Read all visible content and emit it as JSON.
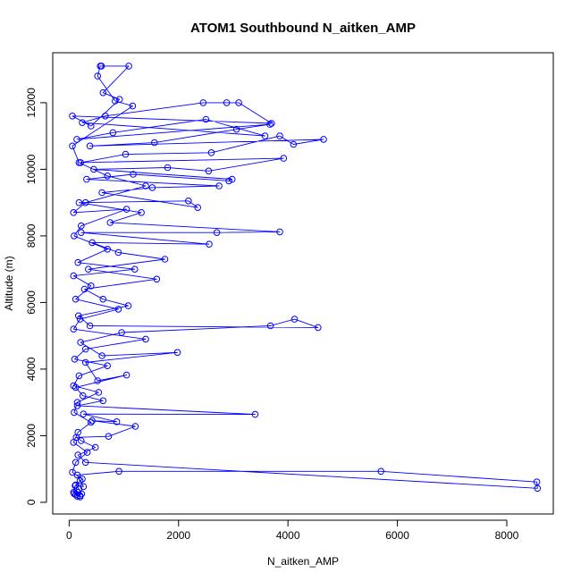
{
  "chart_data": {
    "type": "scatter",
    "title": "ATOM1 Southbound N_aitken_AMP",
    "xlabel": "N_aitken_AMP",
    "ylabel": "Altitude (m)",
    "xlim": [
      -300,
      8850
    ],
    "ylim": [
      -350,
      13500
    ],
    "xticks": [
      0,
      2000,
      4000,
      6000,
      8000
    ],
    "yticks": [
      0,
      2000,
      4000,
      6000,
      8000,
      10000,
      12000
    ],
    "grid": false,
    "legend": "none",
    "color": "#0000ff",
    "series": [
      {
        "points": [
          [
            150,
            180
          ],
          [
            120,
            230
          ],
          [
            200,
            200
          ],
          [
            90,
            260
          ],
          [
            160,
            300
          ],
          [
            230,
            250
          ],
          [
            180,
            400
          ],
          [
            120,
            520
          ],
          [
            260,
            470
          ],
          [
            200,
            650
          ],
          [
            150,
            820
          ],
          [
            910,
            930
          ],
          [
            5700,
            930
          ],
          [
            8550,
            610
          ],
          [
            8560,
            420
          ],
          [
            300,
            1200
          ],
          [
            160,
            1420
          ],
          [
            480,
            1650
          ],
          [
            220,
            1850
          ],
          [
            130,
            1950
          ],
          [
            720,
            1980
          ],
          [
            1210,
            2280
          ],
          [
            420,
            2450
          ],
          [
            870,
            2420
          ],
          [
            260,
            2650
          ],
          [
            3400,
            2640
          ],
          [
            150,
            2900
          ],
          [
            620,
            3050
          ],
          [
            250,
            3200
          ],
          [
            120,
            3450
          ],
          [
            1050,
            3820
          ],
          [
            520,
            3650
          ],
          [
            300,
            4200
          ],
          [
            1980,
            4500
          ],
          [
            600,
            4400
          ],
          [
            210,
            4800
          ],
          [
            960,
            5100
          ],
          [
            3680,
            5300
          ],
          [
            4120,
            5500
          ],
          [
            4550,
            5250
          ],
          [
            380,
            5300
          ],
          [
            170,
            5600
          ],
          [
            1080,
            5900
          ],
          [
            620,
            6100
          ],
          [
            280,
            6400
          ],
          [
            1600,
            6700
          ],
          [
            350,
            7000
          ],
          [
            1750,
            7300
          ],
          [
            900,
            7500
          ],
          [
            420,
            7800
          ],
          [
            2560,
            7750
          ],
          [
            220,
            8100
          ],
          [
            2700,
            8100
          ],
          [
            3850,
            8120
          ],
          [
            750,
            8400
          ],
          [
            1320,
            8700
          ],
          [
            180,
            9000
          ],
          [
            2180,
            9050
          ],
          [
            2350,
            8850
          ],
          [
            600,
            9300
          ],
          [
            1520,
            9450
          ],
          [
            2740,
            9500
          ],
          [
            320,
            9700
          ],
          [
            1170,
            9850
          ],
          [
            2920,
            9650
          ],
          [
            2980,
            9700
          ],
          [
            450,
            10000
          ],
          [
            1800,
            10050
          ],
          [
            2550,
            9950
          ],
          [
            3920,
            10330
          ],
          [
            210,
            10200
          ],
          [
            1030,
            10450
          ],
          [
            2600,
            10500
          ],
          [
            3850,
            11000
          ],
          [
            4100,
            10750
          ],
          [
            4650,
            10900
          ],
          [
            380,
            10700
          ],
          [
            1560,
            10800
          ],
          [
            3060,
            11200
          ],
          [
            3670,
            11350
          ],
          [
            140,
            10900
          ],
          [
            800,
            11100
          ],
          [
            2500,
            11500
          ],
          [
            3580,
            11000
          ],
          [
            240,
            11400
          ],
          [
            660,
            11600
          ],
          [
            2450,
            12000
          ],
          [
            2880,
            12000
          ],
          [
            3100,
            12000
          ],
          [
            3700,
            11380
          ],
          [
            60,
            11600
          ],
          [
            400,
            11300
          ],
          [
            920,
            12100
          ],
          [
            620,
            12300
          ],
          [
            1090,
            13100
          ],
          [
            590,
            13100
          ],
          [
            570,
            13100
          ],
          [
            520,
            12800
          ],
          [
            840,
            12050
          ],
          [
            1160,
            11900
          ],
          [
            60,
            10700
          ],
          [
            180,
            10200
          ],
          [
            700,
            9800
          ],
          [
            1400,
            9500
          ],
          [
            300,
            9000
          ],
          [
            80,
            8700
          ],
          [
            1050,
            8800
          ],
          [
            220,
            8300
          ],
          [
            90,
            8000
          ],
          [
            700,
            7600
          ],
          [
            160,
            7200
          ],
          [
            1200,
            7000
          ],
          [
            80,
            6800
          ],
          [
            400,
            6500
          ],
          [
            120,
            6100
          ],
          [
            900,
            5800
          ],
          [
            200,
            5500
          ],
          [
            80,
            5200
          ],
          [
            1400,
            4900
          ],
          [
            300,
            4600
          ],
          [
            100,
            4300
          ],
          [
            700,
            4100
          ],
          [
            180,
            3800
          ],
          [
            80,
            3500
          ],
          [
            540,
            3300
          ],
          [
            150,
            3000
          ],
          [
            90,
            2700
          ],
          [
            400,
            2400
          ],
          [
            160,
            2100
          ],
          [
            80,
            1800
          ],
          [
            330,
            1500
          ],
          [
            120,
            1200
          ],
          [
            60,
            900
          ],
          [
            240,
            700
          ],
          [
            110,
            500
          ],
          [
            80,
            300
          ],
          [
            200,
            160
          ]
        ]
      }
    ]
  }
}
